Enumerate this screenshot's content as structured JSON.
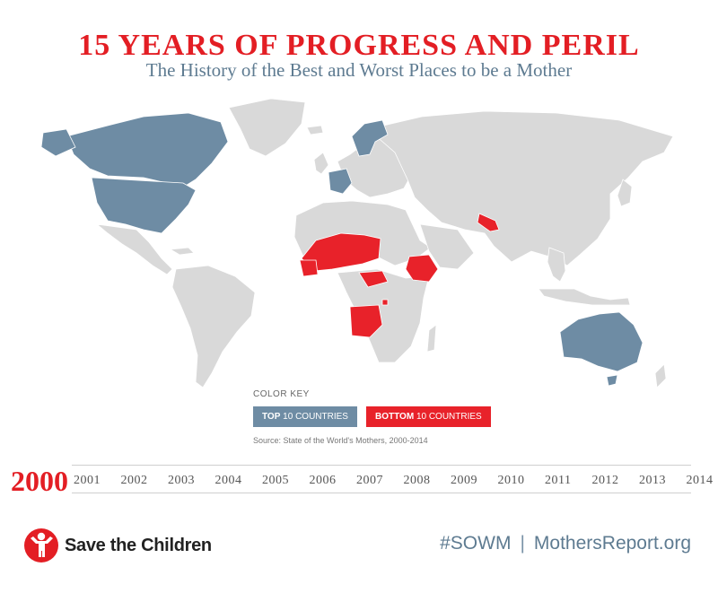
{
  "header": {
    "title": "15 YEARS OF PROGRESS AND PERIL",
    "subtitle": "The History of the Best and Worst Places to be a Mother"
  },
  "colors": {
    "title": "#e31e24",
    "subtitle": "#5e7b91",
    "top_countries": "#6e8ca4",
    "bottom_countries": "#e8222a",
    "other_countries": "#d9d9d9",
    "ocean": "#ffffff"
  },
  "legend": {
    "heading": "COLOR KEY",
    "top": {
      "strong": "TOP",
      "rest": "10 COUNTRIES"
    },
    "bottom": {
      "strong": "BOTTOM",
      "rest": "10 COUNTRIES"
    },
    "source": "Source: State of the World's Mothers, 2000-2014"
  },
  "timeline": {
    "selected": "2000",
    "years": [
      "2001",
      "2002",
      "2003",
      "2004",
      "2005",
      "2006",
      "2007",
      "2008",
      "2009",
      "2010",
      "2011",
      "2012",
      "2013",
      "2014"
    ]
  },
  "footer": {
    "org": "Save the Children",
    "logo_icon": "child-figure-icon",
    "hashtag": "#SOWM",
    "separator": "|",
    "site": "MothersReport.org"
  }
}
